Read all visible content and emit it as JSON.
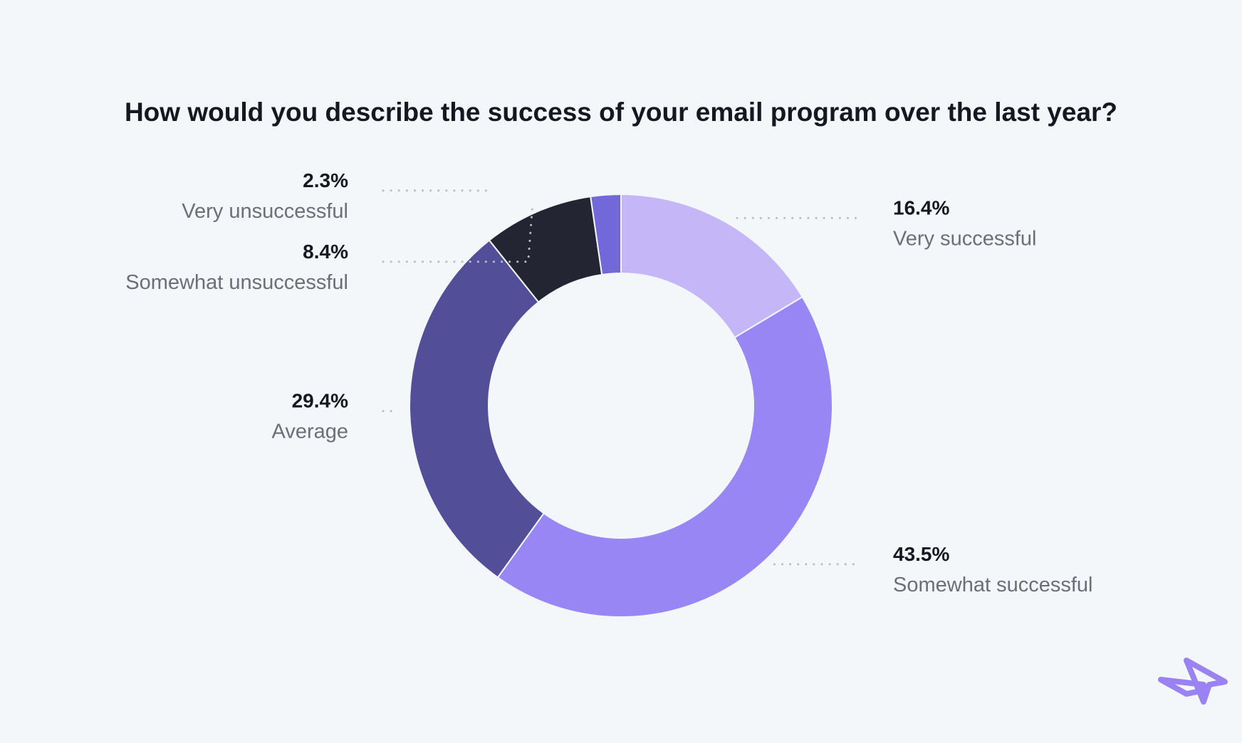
{
  "chart_data": {
    "type": "pie",
    "title": "How would you describe the success of your email program over the last year?",
    "categories": [
      "Very successful",
      "Somewhat successful",
      "Average",
      "Somewhat unsuccessful",
      "Very unsuccessful"
    ],
    "values": [
      16.4,
      43.5,
      29.4,
      8.4,
      2.3
    ],
    "value_labels": [
      "16.4%",
      "43.5%",
      "29.4%",
      "8.4%",
      "2.3%"
    ],
    "colors": [
      "#c4b6f7",
      "#9786f3",
      "#524e98",
      "#232532",
      "#7368da"
    ],
    "donut": true,
    "start": "12 o'clock",
    "direction": "clockwise"
  },
  "logo": {
    "name": "paper-plane-logo",
    "color": "#9b82f2"
  }
}
